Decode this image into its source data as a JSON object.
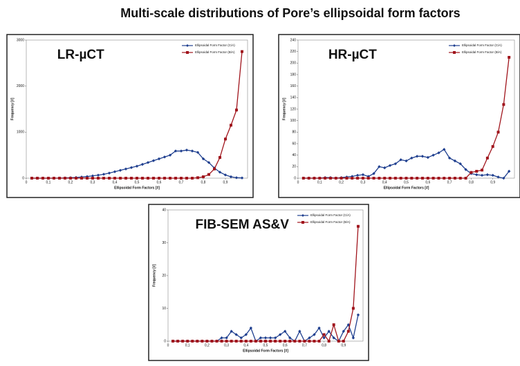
{
  "title": "Multi-scale distributions of Pore’s ellipsoidal form factors",
  "chart_data": [
    {
      "type": "line",
      "title": "LR-µCT",
      "x_label": "Ellipsoidal Form Factors [#]",
      "y_label": "Frequency [#]",
      "legend": "upper right",
      "x": [
        0.025,
        0.05,
        0.075,
        0.1,
        0.125,
        0.15,
        0.175,
        0.2,
        0.225,
        0.25,
        0.275,
        0.3,
        0.325,
        0.35,
        0.375,
        0.4,
        0.425,
        0.45,
        0.475,
        0.5,
        0.525,
        0.55,
        0.575,
        0.6,
        0.625,
        0.65,
        0.675,
        0.7,
        0.725,
        0.75,
        0.775,
        0.8,
        0.825,
        0.85,
        0.875,
        0.9,
        0.925,
        0.95,
        0.975
      ],
      "series": [
        {
          "name": "Ellipsoidal Form Factor (C/A)",
          "color": "#1f3f8f",
          "values": [
            0,
            0,
            0,
            0,
            0,
            2,
            5,
            10,
            15,
            25,
            35,
            50,
            65,
            85,
            110,
            140,
            170,
            200,
            230,
            260,
            300,
            340,
            380,
            420,
            460,
            500,
            590,
            590,
            610,
            590,
            560,
            420,
            340,
            220,
            130,
            70,
            30,
            10,
            5
          ]
        },
        {
          "name": "Ellipsoidal Form Factor (B/A)",
          "color": "#a0141c",
          "values": [
            0,
            0,
            0,
            0,
            0,
            0,
            0,
            0,
            0,
            0,
            0,
            0,
            0,
            0,
            0,
            0,
            0,
            0,
            0,
            0,
            0,
            0,
            0,
            0,
            0,
            0,
            0,
            0,
            0,
            0,
            10,
            30,
            80,
            200,
            450,
            850,
            1150,
            1480,
            2750
          ]
        }
      ],
      "xlim": [
        0,
        1
      ],
      "xticks": [
        0,
        {
          "value": 0.1,
          "label": "0,1"
        },
        {
          "value": 0.2,
          "label": "0,2"
        },
        {
          "value": 0.3,
          "label": "0,3"
        },
        {
          "value": 0.4,
          "label": "0,4"
        },
        {
          "value": 0.5,
          "label": "0,5"
        },
        {
          "value": 0.6,
          "label": "0,6"
        },
        {
          "value": 0.7,
          "label": "0,7"
        },
        {
          "value": 0.8,
          "label": "0,8"
        },
        {
          "value": 0.9,
          "label": "0,9"
        }
      ],
      "ylim": [
        0,
        3000
      ],
      "yticks": [
        0,
        1000,
        2000,
        3000
      ]
    },
    {
      "type": "line",
      "title": "HR-µCT",
      "x_label": "Ellipsoidal Form Factors [#]",
      "y_label": "Frequency [#]",
      "legend": "upper right",
      "x": [
        0.025,
        0.05,
        0.075,
        0.1,
        0.125,
        0.15,
        0.175,
        0.2,
        0.225,
        0.25,
        0.275,
        0.3,
        0.325,
        0.35,
        0.375,
        0.4,
        0.425,
        0.45,
        0.475,
        0.5,
        0.525,
        0.55,
        0.575,
        0.6,
        0.625,
        0.65,
        0.675,
        0.7,
        0.725,
        0.75,
        0.775,
        0.8,
        0.825,
        0.85,
        0.875,
        0.9,
        0.925,
        0.95,
        0.975
      ],
      "series": [
        {
          "name": "Ellipsoidal Form Factor (C/A)",
          "color": "#1f3f8f",
          "values": [
            0,
            0,
            0,
            0,
            1,
            1,
            0,
            1,
            2,
            3,
            5,
            6,
            3,
            8,
            20,
            18,
            22,
            25,
            32,
            30,
            35,
            38,
            38,
            36,
            40,
            44,
            50,
            35,
            30,
            25,
            15,
            8,
            6,
            5,
            6,
            5,
            2,
            0,
            12
          ]
        },
        {
          "name": "Ellipsoidal Form Factor (B/A)",
          "color": "#a0141c",
          "values": [
            0,
            0,
            0,
            0,
            0,
            0,
            0,
            0,
            0,
            0,
            0,
            0,
            0,
            0,
            0,
            0,
            0,
            0,
            0,
            0,
            0,
            0,
            0,
            0,
            0,
            0,
            0,
            0,
            0,
            0,
            0,
            10,
            12,
            14,
            35,
            55,
            80,
            128,
            210
          ]
        }
      ],
      "xlim": [
        0,
        1
      ],
      "xticks": [
        0,
        {
          "value": 0.1,
          "label": "0,1"
        },
        {
          "value": 0.2,
          "label": "0,2"
        },
        {
          "value": 0.3,
          "label": "0,3"
        },
        {
          "value": 0.4,
          "label": "0,4"
        },
        {
          "value": 0.5,
          "label": "0,5"
        },
        {
          "value": 0.6,
          "label": "0,6"
        },
        {
          "value": 0.7,
          "label": "0,7"
        },
        {
          "value": 0.8,
          "label": "0,8"
        },
        {
          "value": 0.9,
          "label": "0,9"
        }
      ],
      "ylim": [
        0,
        240
      ],
      "yticks": [
        0,
        20,
        40,
        60,
        80,
        100,
        120,
        140,
        160,
        180,
        200,
        220,
        240
      ]
    },
    {
      "type": "line",
      "title": "FIB-SEM AS&V",
      "x_label": "Ellipsoidal Form Factors [#]",
      "y_label": "Frequency [#]",
      "legend": "upper right",
      "x": [
        0.025,
        0.05,
        0.075,
        0.1,
        0.125,
        0.15,
        0.175,
        0.2,
        0.225,
        0.25,
        0.275,
        0.3,
        0.325,
        0.35,
        0.375,
        0.4,
        0.425,
        0.45,
        0.475,
        0.5,
        0.525,
        0.55,
        0.575,
        0.6,
        0.625,
        0.65,
        0.675,
        0.7,
        0.725,
        0.75,
        0.775,
        0.8,
        0.825,
        0.85,
        0.875,
        0.9,
        0.925,
        0.95,
        0.975
      ],
      "series": [
        {
          "name": "Ellipsoidal Form Factor (C/A)",
          "color": "#1f3f8f",
          "values": [
            0,
            0,
            0,
            0,
            0,
            0,
            0,
            0,
            0,
            0,
            1,
            1,
            3,
            2,
            1,
            2,
            4,
            0,
            1,
            1,
            1,
            1,
            2,
            3,
            1,
            0,
            3,
            0,
            1,
            2,
            4,
            1,
            3,
            1,
            0,
            3,
            5,
            1,
            8
          ]
        },
        {
          "name": "Ellipsoidal Form Factor (B/A)",
          "color": "#a0141c",
          "values": [
            0,
            0,
            0,
            0,
            0,
            0,
            0,
            0,
            0,
            0,
            0,
            0,
            0,
            0,
            0,
            0,
            0,
            0,
            0,
            0,
            0,
            0,
            0,
            0,
            0,
            0,
            0,
            0,
            0,
            0,
            0,
            2,
            0,
            5,
            0,
            0,
            3,
            10,
            35
          ]
        }
      ],
      "xlim": [
        0,
        1
      ],
      "xticks": [
        0,
        {
          "value": 0.1,
          "label": "0,1"
        },
        {
          "value": 0.2,
          "label": "0,2"
        },
        {
          "value": 0.3,
          "label": "0,3"
        },
        {
          "value": 0.4,
          "label": "0,4"
        },
        {
          "value": 0.5,
          "label": "0,5"
        },
        {
          "value": 0.6,
          "label": "0,6"
        },
        {
          "value": 0.7,
          "label": "0,7"
        },
        {
          "value": 0.8,
          "label": "0,8"
        },
        {
          "value": 0.9,
          "label": "0,9"
        }
      ],
      "ylim": [
        0,
        40
      ],
      "yticks": [
        0,
        10,
        20,
        30,
        40
      ]
    }
  ]
}
